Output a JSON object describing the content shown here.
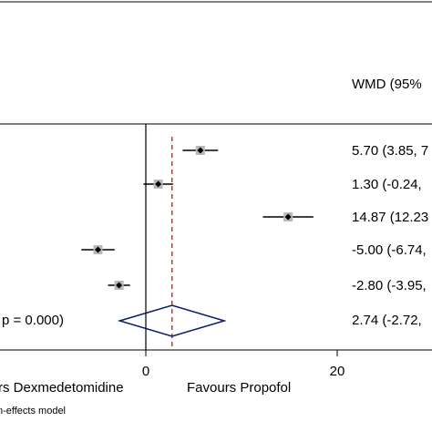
{
  "header": {
    "wmd_column_label": "WMD (95%"
  },
  "chart_data": {
    "type": "forest",
    "x_ticks": [
      0,
      20
    ],
    "x_tick_labels": [
      "0",
      "20"
    ],
    "favours_left_label": "rs Dexmedetomidine",
    "favours_right_label": "Favours Propofol",
    "footnote": "n-effects model",
    "overall_line_x": 2.74,
    "studies": [
      {
        "estimate": 5.7,
        "ci_low": 3.85,
        "ci_high": 7.55,
        "label": "5.70 (3.85, 7"
      },
      {
        "estimate": 1.3,
        "ci_low": -0.24,
        "ci_high": 2.84,
        "label": "1.30 (-0.24,"
      },
      {
        "estimate": 14.87,
        "ci_low": 12.23,
        "ci_high": 17.51,
        "label": "14.87 (12.23"
      },
      {
        "estimate": -5.0,
        "ci_low": -6.74,
        "ci_high": -3.26,
        "label": "-5.00 (-6.74,"
      },
      {
        "estimate": -2.8,
        "ci_low": -3.95,
        "ci_high": -1.65,
        "label": "-2.80 (-3.95,"
      }
    ],
    "overall": {
      "estimate": 2.74,
      "ci_low": -2.72,
      "ci_high": 8.2,
      "label": "2.74 (-2.72,",
      "heterogeneity_label": "p = 0.000)"
    },
    "colors": {
      "ci_line": "#000000",
      "point": "#000000",
      "weight_box": "#b8b8b8",
      "overall_line": "#8b1a1a",
      "diamond": "#0a1a6e"
    }
  }
}
